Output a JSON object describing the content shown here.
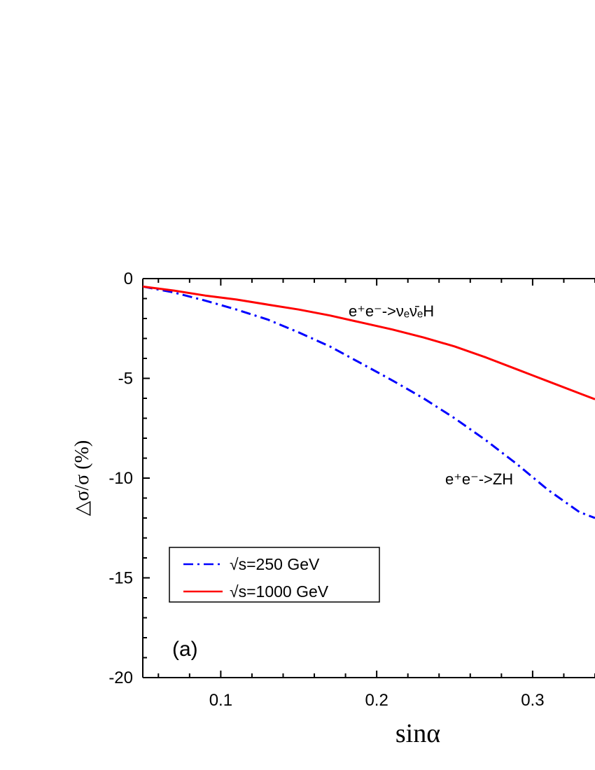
{
  "chart_data": {
    "type": "line",
    "xlabel": "sinα",
    "ylabel": "△σ/σ (%)",
    "xlim": [
      0.05,
      0.34
    ],
    "ylim": [
      -20,
      0
    ],
    "x_ticks": [
      {
        "value": 0.1,
        "label": "0.1"
      },
      {
        "value": 0.2,
        "label": "0.2"
      },
      {
        "value": 0.3,
        "label": "0.3"
      }
    ],
    "y_ticks": [
      {
        "value": 0,
        "label": "0"
      },
      {
        "value": -5,
        "label": "-5"
      },
      {
        "value": -10,
        "label": "-10"
      },
      {
        "value": -15,
        "label": "-15"
      },
      {
        "value": -20,
        "label": "-20"
      }
    ],
    "panel_label": "(a)",
    "annotations": [
      {
        "id": "nunuH",
        "text": "e⁺e⁻->νₑν̄ₑH",
        "near_series": "√s=1000 GeV"
      },
      {
        "id": "ZH",
        "text": "e⁺e⁻->ZH",
        "near_series": "√s=250 GeV"
      }
    ],
    "legend_position": "bottom-left",
    "series": [
      {
        "name": "√s=250 GeV",
        "color": "#0000ff",
        "dash": "dash-dot",
        "x": [
          0.05,
          0.07,
          0.09,
          0.11,
          0.13,
          0.15,
          0.17,
          0.19,
          0.21,
          0.23,
          0.25,
          0.27,
          0.29,
          0.31,
          0.33,
          0.34
        ],
        "y": [
          -0.4,
          -0.7,
          -1.1,
          -1.55,
          -2.05,
          -2.7,
          -3.4,
          -4.25,
          -5.1,
          -6.0,
          -7.0,
          -8.1,
          -9.3,
          -10.6,
          -11.7,
          -12.0
        ]
      },
      {
        "name": "√s=1000 GeV",
        "color": "#ff0000",
        "dash": "solid",
        "x": [
          0.05,
          0.07,
          0.09,
          0.11,
          0.13,
          0.15,
          0.17,
          0.19,
          0.21,
          0.23,
          0.25,
          0.27,
          0.29,
          0.31,
          0.33,
          0.34
        ],
        "y": [
          -0.4,
          -0.6,
          -0.85,
          -1.05,
          -1.3,
          -1.55,
          -1.85,
          -2.2,
          -2.55,
          -2.95,
          -3.4,
          -3.95,
          -4.55,
          -5.15,
          -5.75,
          -6.05
        ]
      }
    ]
  }
}
